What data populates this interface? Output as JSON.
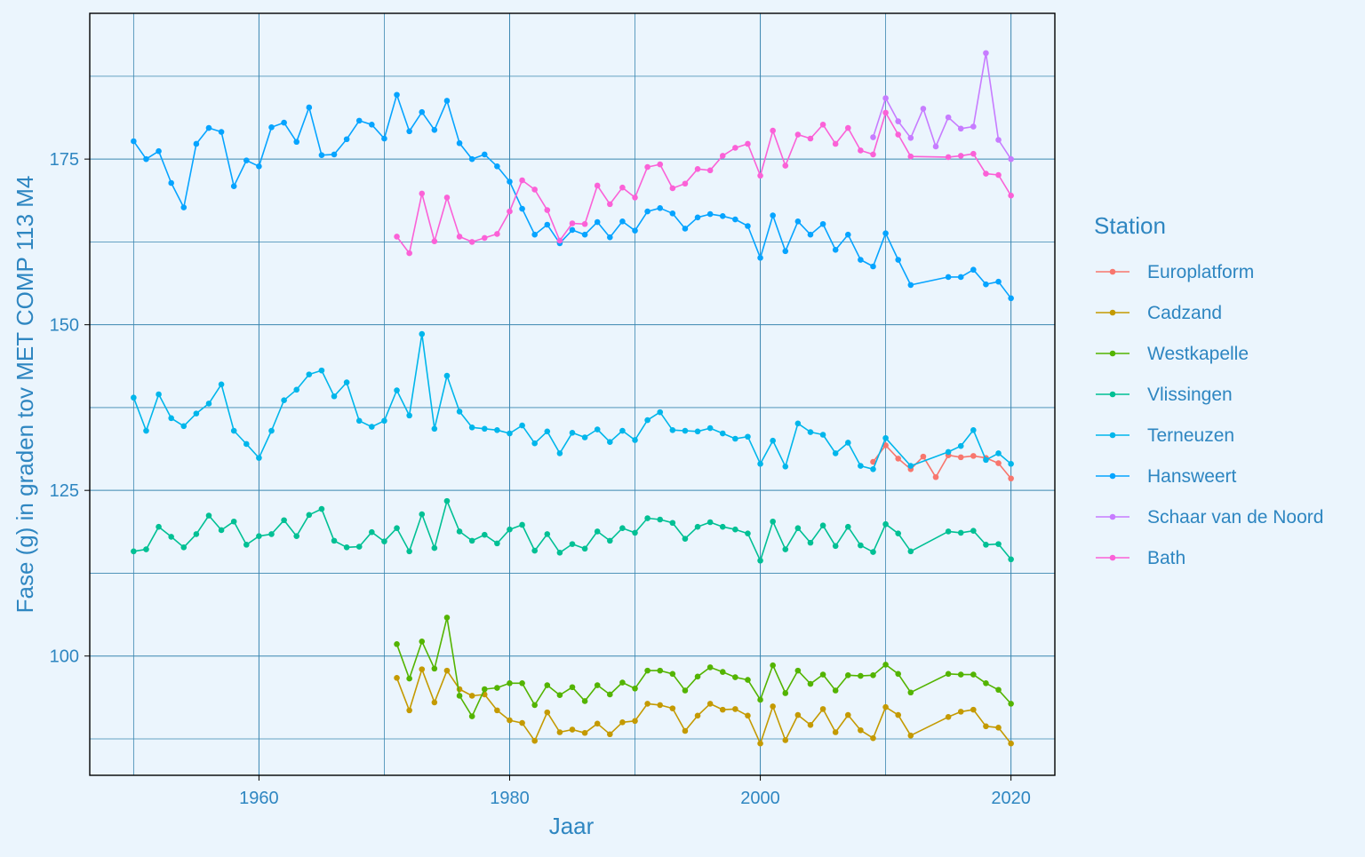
{
  "chart_data": {
    "type": "line",
    "xlabel": "Jaar",
    "ylabel": "Fase (g) in graden tov MET COMP 113 M4",
    "legend_title": "Station",
    "legend_position": "right",
    "xlim": [
      1946.5,
      2023.5
    ],
    "ylim": [
      82,
      197
    ],
    "x_ticks": [
      1960,
      1980,
      2000,
      2020
    ],
    "y_ticks": [
      100,
      125,
      150,
      175
    ],
    "grid": true,
    "colors": {
      "background": "#ebf5fd",
      "grid": "#3a86b0",
      "text": "#2e86c1"
    },
    "series": [
      {
        "name": "Europlatform",
        "color": "#f8766d",
        "x": [
          2009,
          2010,
          2011,
          2012,
          2013,
          2014,
          2015,
          2016,
          2017,
          2018,
          2019,
          2020
        ],
        "y": [
          129.3,
          131.8,
          129.8,
          128.2,
          130.1,
          127.0,
          130.3,
          130.0,
          130.2,
          129.9,
          129.1,
          126.8
        ]
      },
      {
        "name": "Cadzand",
        "color": "#c49a00",
        "x": [
          1971,
          1972,
          1973,
          1974,
          1975,
          1976,
          1977,
          1978,
          1979,
          1980,
          1981,
          1982,
          1983,
          1984,
          1985,
          1986,
          1987,
          1988,
          1989,
          1990,
          1991,
          1992,
          1993,
          1994,
          1995,
          1996,
          1997,
          1998,
          1999,
          2000,
          2001,
          2002,
          2003,
          2004,
          2005,
          2006,
          2007,
          2008,
          2009,
          2010,
          2011,
          2012,
          2015,
          2016,
          2017,
          2018,
          2019,
          2020
        ],
        "y": [
          96.7,
          91.8,
          98.0,
          93.0,
          97.8,
          95.0,
          94.0,
          94.2,
          91.8,
          90.3,
          89.9,
          87.2,
          91.5,
          88.5,
          88.9,
          88.4,
          89.8,
          88.2,
          90.0,
          90.2,
          92.8,
          92.6,
          92.1,
          88.7,
          91.0,
          92.8,
          91.9,
          92.0,
          91.0,
          86.8,
          92.4,
          87.3,
          91.1,
          89.6,
          92.0,
          88.5,
          91.1,
          88.8,
          87.6,
          92.3,
          91.1,
          88.0,
          90.8,
          91.6,
          91.9,
          89.4,
          89.2,
          86.8
        ]
      },
      {
        "name": "Westkapelle",
        "color": "#53b400",
        "x": [
          1971,
          1972,
          1973,
          1974,
          1975,
          1976,
          1977,
          1978,
          1979,
          1980,
          1981,
          1982,
          1983,
          1984,
          1985,
          1986,
          1987,
          1988,
          1989,
          1990,
          1991,
          1992,
          1993,
          1994,
          1995,
          1996,
          1997,
          1998,
          1999,
          2000,
          2001,
          2002,
          2003,
          2004,
          2005,
          2006,
          2007,
          2008,
          2009,
          2010,
          2011,
          2012,
          2015,
          2016,
          2017,
          2018,
          2019,
          2020
        ],
        "y": [
          101.8,
          96.6,
          102.2,
          98.1,
          105.8,
          94.0,
          90.9,
          95.0,
          95.2,
          95.9,
          95.9,
          92.6,
          95.6,
          94.1,
          95.3,
          93.2,
          95.6,
          94.2,
          96.0,
          95.1,
          97.8,
          97.8,
          97.3,
          94.8,
          96.9,
          98.3,
          97.6,
          96.8,
          96.4,
          93.4,
          98.6,
          94.4,
          97.8,
          95.8,
          97.2,
          94.8,
          97.1,
          97.0,
          97.1,
          98.7,
          97.3,
          94.5,
          97.3,
          97.2,
          97.2,
          95.9,
          94.9,
          92.8
        ]
      },
      {
        "name": "Vlissingen",
        "color": "#00c094",
        "x": [
          1950,
          1951,
          1952,
          1953,
          1954,
          1955,
          1956,
          1957,
          1958,
          1959,
          1960,
          1961,
          1962,
          1963,
          1964,
          1965,
          1966,
          1967,
          1968,
          1969,
          1970,
          1971,
          1972,
          1973,
          1974,
          1975,
          1976,
          1977,
          1978,
          1979,
          1980,
          1981,
          1982,
          1983,
          1984,
          1985,
          1986,
          1987,
          1988,
          1989,
          1990,
          1991,
          1992,
          1993,
          1994,
          1995,
          1996,
          1997,
          1998,
          1999,
          2000,
          2001,
          2002,
          2003,
          2004,
          2005,
          2006,
          2007,
          2008,
          2009,
          2010,
          2011,
          2012,
          2015,
          2016,
          2017,
          2018,
          2019,
          2020
        ],
        "y": [
          115.8,
          116.1,
          119.5,
          118.0,
          116.4,
          118.4,
          121.2,
          119.0,
          120.3,
          116.8,
          118.1,
          118.4,
          120.5,
          118.1,
          121.3,
          122.2,
          117.4,
          116.4,
          116.5,
          118.7,
          117.3,
          119.3,
          115.8,
          121.4,
          116.3,
          123.4,
          118.8,
          117.4,
          118.3,
          117.0,
          119.1,
          119.8,
          115.9,
          118.4,
          115.6,
          116.9,
          116.2,
          118.8,
          117.4,
          119.3,
          118.6,
          120.8,
          120.6,
          120.1,
          117.7,
          119.5,
          120.2,
          119.5,
          119.1,
          118.5,
          114.4,
          120.3,
          116.1,
          119.3,
          117.1,
          119.7,
          116.6,
          119.5,
          116.7,
          115.7,
          119.9,
          118.5,
          115.8,
          118.8,
          118.6,
          118.9,
          116.8,
          116.9,
          114.6
        ]
      },
      {
        "name": "Terneuzen",
        "color": "#00b6eb",
        "x": [
          1950,
          1951,
          1952,
          1953,
          1954,
          1955,
          1956,
          1957,
          1958,
          1959,
          1960,
          1961,
          1962,
          1963,
          1964,
          1965,
          1966,
          1967,
          1968,
          1969,
          1970,
          1971,
          1972,
          1973,
          1974,
          1975,
          1976,
          1977,
          1978,
          1979,
          1980,
          1981,
          1982,
          1983,
          1984,
          1985,
          1986,
          1987,
          1988,
          1989,
          1990,
          1991,
          1992,
          1993,
          1994,
          1995,
          1996,
          1997,
          1998,
          1999,
          2000,
          2001,
          2002,
          2003,
          2004,
          2005,
          2006,
          2007,
          2008,
          2009,
          2010,
          2012,
          2015,
          2016,
          2017,
          2018,
          2019,
          2020
        ],
        "y": [
          139.0,
          134.0,
          139.5,
          135.9,
          134.7,
          136.6,
          138.1,
          141.0,
          134.0,
          132.0,
          129.9,
          134.0,
          138.6,
          140.2,
          142.5,
          143.1,
          139.2,
          141.3,
          135.5,
          134.6,
          135.5,
          140.1,
          136.3,
          148.6,
          134.3,
          142.3,
          136.9,
          134.5,
          134.3,
          134.1,
          133.6,
          134.8,
          132.1,
          133.9,
          130.6,
          133.7,
          133.0,
          134.2,
          132.3,
          134.0,
          132.6,
          135.6,
          136.8,
          134.1,
          134.0,
          133.9,
          134.4,
          133.6,
          132.8,
          133.1,
          129.0,
          132.5,
          128.6,
          135.1,
          133.8,
          133.4,
          130.6,
          132.2,
          128.7,
          128.2,
          132.9,
          128.7,
          130.8,
          131.7,
          134.1,
          129.6,
          130.6,
          129.0
        ]
      },
      {
        "name": "Hansweert",
        "color": "#06a4ff",
        "x": [
          1950,
          1951,
          1952,
          1953,
          1954,
          1955,
          1956,
          1957,
          1958,
          1959,
          1960,
          1961,
          1962,
          1963,
          1964,
          1965,
          1966,
          1967,
          1968,
          1969,
          1970,
          1971,
          1972,
          1973,
          1974,
          1975,
          1976,
          1977,
          1978,
          1979,
          1980,
          1981,
          1982,
          1983,
          1984,
          1985,
          1986,
          1987,
          1988,
          1989,
          1990,
          1991,
          1992,
          1993,
          1994,
          1995,
          1996,
          1997,
          1998,
          1999,
          2000,
          2001,
          2002,
          2003,
          2004,
          2005,
          2006,
          2007,
          2008,
          2009,
          2010,
          2011,
          2012,
          2015,
          2016,
          2017,
          2018,
          2019,
          2020
        ],
        "y": [
          177.7,
          175.0,
          176.2,
          171.4,
          167.7,
          177.3,
          179.7,
          179.1,
          170.9,
          174.8,
          173.9,
          179.8,
          180.5,
          177.6,
          182.8,
          175.6,
          175.7,
          178.0,
          180.8,
          180.2,
          178.1,
          184.7,
          179.2,
          182.1,
          179.4,
          183.8,
          177.4,
          175.0,
          175.7,
          173.9,
          171.6,
          167.5,
          163.6,
          165.1,
          162.3,
          164.3,
          163.6,
          165.5,
          163.2,
          165.6,
          164.2,
          167.1,
          167.6,
          166.8,
          164.5,
          166.2,
          166.7,
          166.4,
          165.9,
          164.9,
          160.1,
          166.5,
          161.1,
          165.6,
          163.6,
          165.2,
          161.3,
          163.6,
          159.8,
          158.8,
          163.8,
          159.8,
          156.0,
          157.2,
          157.2,
          158.3,
          156.1,
          156.5,
          154.0
        ]
      },
      {
        "name": "Schaar van de Noord",
        "color": "#c77cff",
        "x": [
          2009,
          2010,
          2011,
          2012,
          2013,
          2014,
          2015,
          2016,
          2017,
          2018,
          2019,
          2020
        ],
        "y": [
          178.3,
          184.2,
          180.7,
          178.2,
          182.6,
          176.9,
          181.3,
          179.6,
          179.9,
          191.0,
          177.9,
          175.0
        ]
      },
      {
        "name": "Bath",
        "color": "#fb61d7",
        "x": [
          1971,
          1972,
          1973,
          1974,
          1975,
          1976,
          1977,
          1978,
          1979,
          1980,
          1981,
          1982,
          1983,
          1984,
          1985,
          1986,
          1987,
          1988,
          1989,
          1990,
          1991,
          1992,
          1993,
          1994,
          1995,
          1996,
          1997,
          1998,
          1999,
          2000,
          2001,
          2002,
          2003,
          2004,
          2005,
          2006,
          2007,
          2008,
          2009,
          2010,
          2011,
          2012,
          2015,
          2016,
          2017,
          2018,
          2019,
          2020
        ],
        "y": [
          163.3,
          160.8,
          169.8,
          162.6,
          169.2,
          163.3,
          162.5,
          163.1,
          163.7,
          167.1,
          171.8,
          170.4,
          167.3,
          162.7,
          165.3,
          165.2,
          171.0,
          168.2,
          170.7,
          169.2,
          173.8,
          174.2,
          170.6,
          171.3,
          173.5,
          173.3,
          175.5,
          176.7,
          177.3,
          172.5,
          179.3,
          174.0,
          178.7,
          178.1,
          180.2,
          177.3,
          179.7,
          176.3,
          175.7,
          182.0,
          178.7,
          175.4,
          175.3,
          175.5,
          175.8,
          172.8,
          172.6,
          169.5
        ]
      }
    ]
  }
}
